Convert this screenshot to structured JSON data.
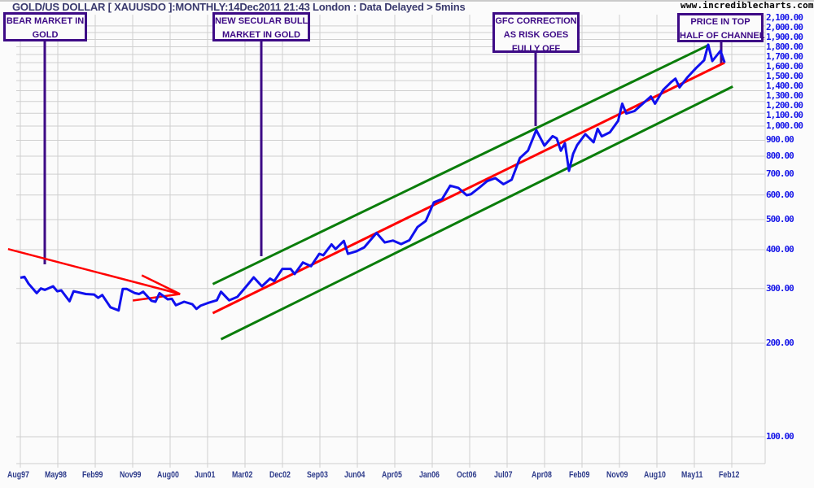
{
  "header": {
    "title": "GOLD/US DOLLAR [ XAUUSDO ]:MONTHLY:14Dec2011 21:43 London : Data Delayed > 5mins",
    "site": "www.incrediblecharts.com"
  },
  "annotations": [
    {
      "lines": [
        "BEAR MARKET IN",
        "GOLD"
      ]
    },
    {
      "lines": [
        "NEW SECULAR BULL",
        "MARKET IN GOLD"
      ]
    },
    {
      "lines": [
        "GFC CORRECTION",
        "AS RISK GOES",
        "FULLY OFF"
      ]
    },
    {
      "lines": [
        "PRICE IN TOP",
        "HALF OF CHANNEL"
      ]
    }
  ],
  "colors": {
    "price": "#1010ee",
    "trend": "#ff0000",
    "channel": "#0a7d0a",
    "annotation": "#3d0a86",
    "grid": "#cfcfcf"
  },
  "chart_data": {
    "type": "line",
    "title": "GOLD/US DOLLAR [ XAUUSDO ]:MONTHLY",
    "yscale": "log",
    "ylim": [
      85,
      2150
    ],
    "x_start": "1997-08",
    "x_tick_labels": [
      "Aug97",
      "May98",
      "Feb99",
      "Nov99",
      "Aug00",
      "Jun01",
      "Mar02",
      "Dec02",
      "Sep03",
      "Jun04",
      "Apr05",
      "Jan06",
      "Oct06",
      "Jul07",
      "Apr08",
      "Feb09",
      "Nov09",
      "Aug10",
      "May11",
      "Feb12"
    ],
    "y_tick_labels": [
      "100.00",
      "200.00",
      "300.00",
      "400.00",
      "500.00",
      "600.00",
      "700.00",
      "800.00",
      "900.00",
      "1,000.00",
      "1,100.00",
      "1,200.00",
      "1,300.00",
      "1,400.00",
      "1,500.00",
      "1,600.00",
      "1,700.00",
      "1,800.00",
      "1,900.00",
      "2,000.00",
      "2,100.00"
    ],
    "y_tick_values": [
      100,
      200,
      300,
      400,
      500,
      600,
      700,
      800,
      900,
      1000,
      1100,
      1200,
      1300,
      1400,
      1500,
      1600,
      1700,
      1800,
      1900,
      2000,
      2100
    ],
    "grid": true,
    "series": [
      {
        "name": "Price",
        "points": [
          [
            "1997-08",
            325
          ],
          [
            "1997-09",
            327
          ],
          [
            "1997-10",
            311
          ],
          [
            "1997-12",
            290
          ],
          [
            "1998-01",
            300
          ],
          [
            "1998-02",
            297
          ],
          [
            "1998-04",
            305
          ],
          [
            "1998-05",
            294
          ],
          [
            "1998-06",
            296
          ],
          [
            "1998-08",
            273
          ],
          [
            "1998-09",
            294
          ],
          [
            "1998-10",
            292
          ],
          [
            "1998-12",
            288
          ],
          [
            "1999-02",
            287
          ],
          [
            "1999-03",
            280
          ],
          [
            "1999-04",
            286
          ],
          [
            "1999-06",
            261
          ],
          [
            "1999-08",
            255
          ],
          [
            "1999-09",
            299
          ],
          [
            "1999-10",
            299
          ],
          [
            "1999-12",
            290
          ],
          [
            "2000-01",
            288
          ],
          [
            "2000-02",
            293
          ],
          [
            "2000-04",
            274
          ],
          [
            "2000-05",
            272
          ],
          [
            "2000-06",
            290
          ],
          [
            "2000-08",
            277
          ],
          [
            "2000-09",
            278
          ],
          [
            "2000-10",
            265
          ],
          [
            "2000-12",
            272
          ],
          [
            "2001-02",
            267
          ],
          [
            "2001-03",
            258
          ],
          [
            "2001-04",
            264
          ],
          [
            "2001-06",
            270
          ],
          [
            "2001-08",
            275
          ],
          [
            "2001-09",
            293
          ],
          [
            "2001-11",
            275
          ],
          [
            "2002-01",
            282
          ],
          [
            "2002-03",
            303
          ],
          [
            "2002-05",
            326
          ],
          [
            "2002-07",
            305
          ],
          [
            "2002-09",
            323
          ],
          [
            "2002-10",
            317
          ],
          [
            "2002-12",
            347
          ],
          [
            "2003-02",
            347
          ],
          [
            "2003-03",
            334
          ],
          [
            "2003-05",
            364
          ],
          [
            "2003-07",
            354
          ],
          [
            "2003-09",
            388
          ],
          [
            "2003-10",
            384
          ],
          [
            "2003-12",
            416
          ],
          [
            "2004-01",
            402
          ],
          [
            "2004-03",
            427
          ],
          [
            "2004-04",
            388
          ],
          [
            "2004-06",
            395
          ],
          [
            "2004-08",
            407
          ],
          [
            "2004-11",
            453
          ],
          [
            "2005-01",
            422
          ],
          [
            "2005-03",
            428
          ],
          [
            "2005-05",
            417
          ],
          [
            "2005-07",
            429
          ],
          [
            "2005-09",
            473
          ],
          [
            "2005-11",
            495
          ],
          [
            "2006-01",
            568
          ],
          [
            "2006-03",
            582
          ],
          [
            "2006-05",
            643
          ],
          [
            "2006-07",
            632
          ],
          [
            "2006-09",
            599
          ],
          [
            "2006-10",
            603
          ],
          [
            "2006-12",
            632
          ],
          [
            "2007-02",
            665
          ],
          [
            "2007-04",
            680
          ],
          [
            "2007-06",
            650
          ],
          [
            "2007-08",
            672
          ],
          [
            "2007-10",
            789
          ],
          [
            "2007-12",
            834
          ],
          [
            "2008-02",
            971
          ],
          [
            "2008-03",
            917
          ],
          [
            "2008-04",
            865
          ],
          [
            "2008-06",
            928
          ],
          [
            "2008-07",
            913
          ],
          [
            "2008-08",
            833
          ],
          [
            "2008-09",
            880
          ],
          [
            "2008-10",
            718
          ],
          [
            "2008-11",
            814
          ],
          [
            "2008-12",
            869
          ],
          [
            "2009-02",
            942
          ],
          [
            "2009-04",
            887
          ],
          [
            "2009-05",
            980
          ],
          [
            "2009-06",
            927
          ],
          [
            "2009-08",
            955
          ],
          [
            "2009-10",
            1040
          ],
          [
            "2009-11",
            1180
          ],
          [
            "2009-12",
            1097
          ],
          [
            "2010-02",
            1118
          ],
          [
            "2010-04",
            1180
          ],
          [
            "2010-06",
            1245
          ],
          [
            "2010-07",
            1180
          ],
          [
            "2010-09",
            1307
          ],
          [
            "2010-11",
            1387
          ],
          [
            "2010-12",
            1421
          ],
          [
            "2011-01",
            1332
          ],
          [
            "2011-03",
            1439
          ],
          [
            "2011-05",
            1536
          ],
          [
            "2011-07",
            1628
          ],
          [
            "2011-08",
            1828
          ],
          [
            "2011-09",
            1620
          ],
          [
            "2011-11",
            1746
          ],
          [
            "2011-12",
            1600
          ]
        ]
      },
      {
        "name": "Trend line",
        "points": [
          [
            "2001-07",
            250
          ],
          [
            "2011-12",
            1600
          ]
        ]
      },
      {
        "name": "Upper channel",
        "points": [
          [
            "2001-07",
            310
          ],
          [
            "2011-08",
            1820
          ]
        ]
      },
      {
        "name": "Lower channel",
        "points": [
          [
            "2001-09",
            206
          ],
          [
            "2012-02",
            1340
          ]
        ]
      },
      {
        "name": "Bear market trend arrow",
        "points": [
          [
            "1997-05",
            402
          ],
          [
            "2000-11",
            288
          ]
        ]
      }
    ]
  }
}
